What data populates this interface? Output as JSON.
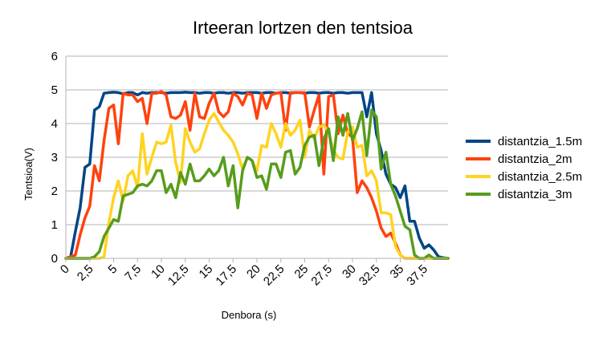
{
  "chart_data": {
    "type": "line",
    "title": "Irteeran lortzen den tentsioa",
    "xlabel": "Denbora (s)",
    "ylabel": "Tentsioa(V)",
    "xlim": [
      0,
      40
    ],
    "ylim": [
      0,
      6
    ],
    "x_ticks": [
      "0",
      "2,5",
      "5",
      "7,5",
      "10",
      "12,5",
      "15",
      "17,5",
      "20",
      "22,5",
      "25",
      "27,5",
      "30",
      "32,5",
      "35",
      "37,5"
    ],
    "y_ticks": [
      "0",
      "1",
      "2",
      "3",
      "4",
      "5",
      "6"
    ],
    "grid": true,
    "legend_position": "right",
    "x": [
      0,
      0.5,
      1,
      1.5,
      2,
      2.5,
      3,
      3.5,
      4,
      4.5,
      5,
      5.5,
      6,
      6.5,
      7,
      7.5,
      8,
      8.5,
      9,
      9.5,
      10,
      10.5,
      11,
      11.5,
      12,
      12.5,
      13,
      13.5,
      14,
      14.5,
      15,
      15.5,
      16,
      16.5,
      17,
      17.5,
      18,
      18.5,
      19,
      19.5,
      20,
      20.5,
      21,
      21.5,
      22,
      22.5,
      23,
      23.5,
      24,
      24.5,
      25,
      25.5,
      26,
      26.5,
      27,
      27.5,
      28,
      28.5,
      29,
      29.5,
      30,
      30.5,
      31,
      31.5,
      32,
      32.5,
      33,
      33.5,
      34,
      34.5,
      35,
      35.5,
      36,
      36.5,
      37,
      37.5,
      38,
      38.5,
      39,
      39.5,
      40
    ],
    "series": [
      {
        "name": "distantzia_1.5m",
        "color": "#004586",
        "values": [
          0,
          0.05,
          0.8,
          1.5,
          2.7,
          2.8,
          4.4,
          4.5,
          4.9,
          4.92,
          4.93,
          4.92,
          4.88,
          4.92,
          4.92,
          4.85,
          4.92,
          4.9,
          4.92,
          4.92,
          4.92,
          4.9,
          4.92,
          4.92,
          4.92,
          4.93,
          4.92,
          4.92,
          4.9,
          4.92,
          4.92,
          4.9,
          4.92,
          4.92,
          4.9,
          4.92,
          4.92,
          4.9,
          4.92,
          4.92,
          4.92,
          4.9,
          4.92,
          4.92,
          4.9,
          4.92,
          4.92,
          4.9,
          4.92,
          4.92,
          4.9,
          4.92,
          4.92,
          4.9,
          4.92,
          4.92,
          4.9,
          4.92,
          4.92,
          4.9,
          4.92,
          4.92,
          4.92,
          4.2,
          4.92,
          3.7,
          3.2,
          2.5,
          2.2,
          2.1,
          1.8,
          2.15,
          1.1,
          1.1,
          0.6,
          0.3,
          0.4,
          0.25,
          0.05,
          0.02,
          0
        ]
      },
      {
        "name": "distantzia_2m",
        "color": "#ff420e",
        "values": [
          0,
          0.05,
          0.1,
          0.7,
          1.2,
          1.55,
          2.75,
          2.3,
          3.5,
          4.45,
          4.55,
          3.4,
          4.9,
          4.85,
          4.85,
          4.65,
          4.75,
          4.0,
          4.9,
          4.9,
          4.95,
          4.85,
          4.2,
          4.15,
          4.25,
          4.65,
          3.8,
          4.9,
          4.2,
          4.15,
          4.6,
          4.9,
          4.35,
          4.2,
          4.35,
          4.9,
          4.8,
          4.55,
          4.9,
          4.85,
          4.15,
          4.9,
          4.45,
          4.85,
          4.9,
          4.92,
          3.8,
          4.92,
          4.92,
          4.92,
          4.92,
          3.9,
          4.4,
          4.85,
          2.5,
          4.8,
          4.85,
          3.7,
          4.25,
          3.7,
          3.6,
          1.95,
          2.3,
          2.1,
          1.8,
          1.4,
          0.9,
          0.65,
          0.75,
          0.45,
          0.1,
          0,
          0,
          0,
          0,
          0,
          0,
          0,
          0,
          0,
          0
        ]
      },
      {
        "name": "distantzia_2.5m",
        "color": "#ffd320",
        "values": [
          0,
          0,
          0,
          0,
          0,
          0,
          0,
          0,
          0.05,
          1.05,
          1.8,
          2.3,
          1.7,
          2.45,
          2.6,
          2.1,
          3.7,
          2.5,
          3.0,
          3.45,
          3.4,
          3.45,
          3.95,
          2.85,
          2.25,
          3.85,
          3.45,
          3.15,
          3.25,
          3.7,
          4.1,
          4.3,
          4.05,
          3.8,
          3.65,
          3.45,
          3.1,
          2.65,
          3.0,
          2.9,
          2.6,
          3.35,
          3.3,
          4.0,
          3.7,
          3.3,
          4.0,
          3.65,
          3.8,
          4.1,
          3.0,
          3.8,
          3.55,
          3.9,
          3.95,
          3.75,
          3.2,
          3.0,
          2.95,
          3.75,
          3.9,
          3.3,
          3.35,
          2.45,
          2.6,
          2.3,
          1.35,
          1.35,
          1.3,
          0.35,
          0.1,
          0,
          0,
          0,
          0,
          0,
          0,
          0,
          0,
          0,
          0
        ]
      },
      {
        "name": "distantzia_3m",
        "color": "#579d1c",
        "values": [
          0,
          0,
          0,
          0,
          0,
          0,
          0.05,
          0.2,
          0.65,
          0.9,
          1.15,
          1.1,
          1.85,
          1.9,
          1.95,
          2.15,
          2.2,
          2.15,
          2.3,
          2.6,
          2.6,
          1.95,
          2.2,
          1.8,
          2.55,
          2.2,
          2.8,
          2.3,
          2.3,
          2.45,
          2.65,
          2.45,
          2.6,
          3.0,
          2.15,
          2.75,
          1.5,
          2.6,
          3.0,
          2.9,
          2.4,
          2.45,
          2.05,
          2.8,
          2.8,
          2.4,
          3.15,
          3.2,
          2.5,
          2.7,
          3.35,
          3.6,
          3.65,
          2.75,
          3.55,
          3.85,
          2.9,
          4.2,
          3.65,
          4.3,
          3.5,
          3.85,
          4.35,
          3.05,
          4.4,
          4.2,
          2.65,
          3.15,
          2.2,
          1.85,
          1.4,
          0.95,
          0.85,
          0.1,
          0,
          0,
          0.1,
          0,
          0,
          0,
          0
        ]
      }
    ]
  }
}
